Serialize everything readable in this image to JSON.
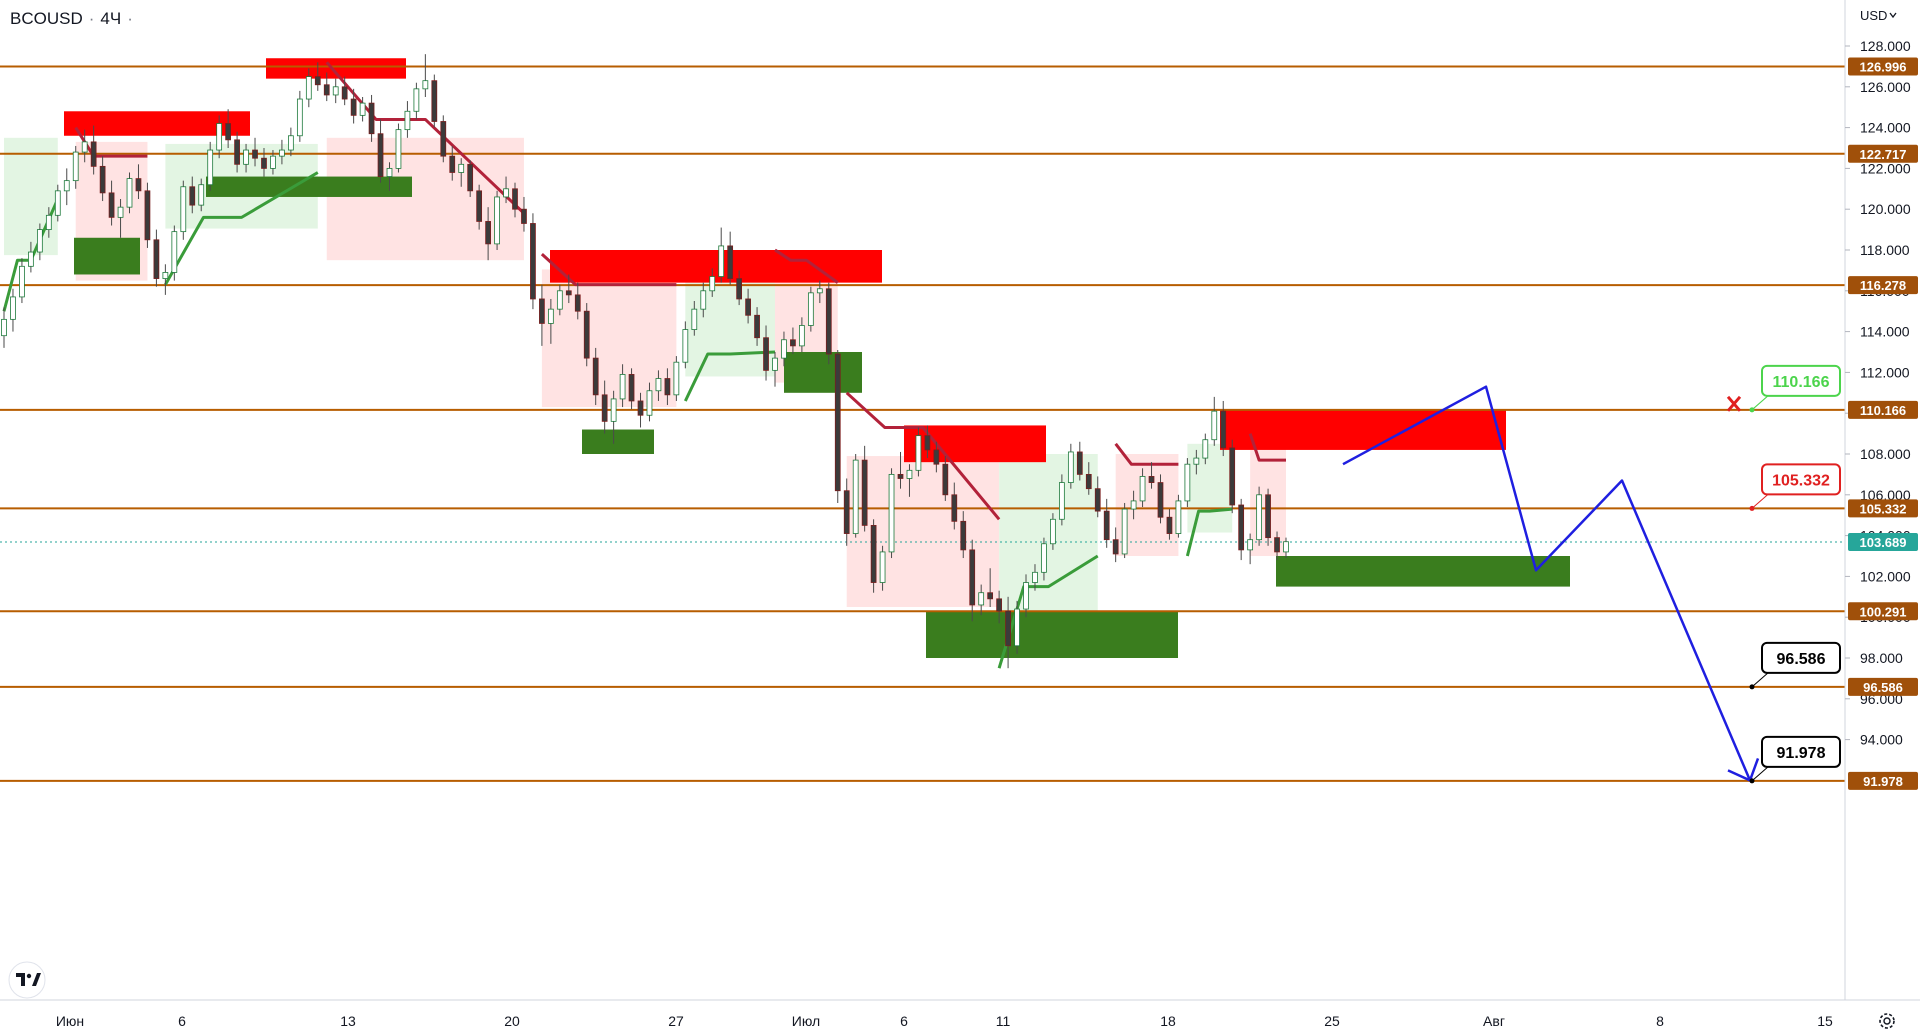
{
  "header": {
    "symbol": "BCOUSD",
    "separator": "·",
    "interval": "4Ч",
    "currency": "USD"
  },
  "colors": {
    "level_line": "#b75d00",
    "level_label_bg": "#a0500a",
    "supply_zone": "#ff0000",
    "demand_zone": "#3a7d1e",
    "bear_band": "#ffe3e3",
    "bull_band": "#e3f5e3",
    "bear_line": "#b2223a",
    "bull_line": "#3a9c3a",
    "projection": "#1f1fe0",
    "last_price": "#26a69a",
    "callout_green": "#4cd44c",
    "callout_red": "#e02020",
    "callout_black": "#000000"
  },
  "chart_data": {
    "type": "candlestick",
    "y_axis": {
      "min": 92,
      "max": 128,
      "ticks": [
        "128.000",
        "126.000",
        "124.000",
        "122.000",
        "120.000",
        "118.000",
        "116.000",
        "114.000",
        "112.000",
        "110.000",
        "108.000",
        "106.000",
        "104.000",
        "102.000",
        "100.000",
        "98.000",
        "96.000",
        "94.000"
      ]
    },
    "x_axis": {
      "ticks": [
        {
          "label": "Июн"
        },
        {
          "label": "6"
        },
        {
          "label": "13"
        },
        {
          "label": "20"
        },
        {
          "label": "27"
        },
        {
          "label": "Июл"
        },
        {
          "label": "6"
        },
        {
          "label": "11"
        },
        {
          "label": "18"
        },
        {
          "label": "25"
        },
        {
          "label": "Авг"
        },
        {
          "label": "8"
        },
        {
          "label": "15"
        }
      ]
    },
    "levels": [
      {
        "value": 126.996,
        "label": "126.996"
      },
      {
        "value": 122.717,
        "label": "122.717"
      },
      {
        "value": 116.278,
        "label": "116.278"
      },
      {
        "value": 110.166,
        "label": "110.166"
      },
      {
        "value": 105.332,
        "label": "105.332"
      },
      {
        "value": 100.291,
        "label": "100.291"
      },
      {
        "value": 96.586,
        "label": "96.586"
      },
      {
        "value": 91.978,
        "label": "91.978"
      }
    ],
    "last_price": {
      "value": 103.689,
      "label": "103.689"
    },
    "callouts": [
      {
        "label": "110.166",
        "value": 110.166,
        "style": "green"
      },
      {
        "label": "105.332",
        "value": 105.332,
        "style": "red"
      },
      {
        "label": "96.586",
        "value": 96.586,
        "style": "black"
      },
      {
        "label": "91.978",
        "value": 91.978,
        "style": "black"
      }
    ],
    "supply_zones": [
      {
        "top": 124.8,
        "bottom": 123.6
      },
      {
        "top": 127.4,
        "bottom": 126.4
      },
      {
        "top": 118.0,
        "bottom": 116.4
      },
      {
        "top": 110.2,
        "bottom": 108.2
      },
      {
        "top": 109.4,
        "bottom": 107.6
      }
    ],
    "demand_zones": [
      {
        "top": 121.6,
        "bottom": 120.6
      },
      {
        "top": 118.6,
        "bottom": 116.8
      },
      {
        "top": 113.0,
        "bottom": 111.0
      },
      {
        "top": 109.2,
        "bottom": 108.0
      },
      {
        "top": 103.0,
        "bottom": 101.5
      },
      {
        "top": 100.3,
        "bottom": 98.0
      }
    ],
    "projection_path": [
      107.5,
      111.3,
      102.3,
      106.7,
      92.0
    ],
    "ohlc": [
      [
        113.8,
        115.2,
        113.2,
        114.6
      ],
      [
        114.6,
        116.1,
        114.0,
        115.7
      ],
      [
        115.7,
        117.6,
        115.4,
        117.2
      ],
      [
        117.2,
        118.4,
        116.9,
        117.9
      ],
      [
        117.9,
        119.3,
        117.5,
        119.0
      ],
      [
        119.0,
        120.1,
        118.6,
        119.7
      ],
      [
        119.7,
        121.2,
        119.4,
        120.9
      ],
      [
        120.9,
        122.0,
        120.2,
        121.4
      ],
      [
        121.4,
        123.1,
        121.0,
        122.8
      ],
      [
        122.8,
        123.9,
        122.3,
        123.3
      ],
      [
        123.3,
        124.1,
        121.7,
        122.1
      ],
      [
        122.1,
        122.6,
        120.4,
        120.8
      ],
      [
        120.8,
        121.4,
        119.2,
        119.6
      ],
      [
        119.6,
        120.5,
        118.6,
        120.1
      ],
      [
        120.1,
        121.8,
        119.8,
        121.5
      ],
      [
        121.5,
        122.2,
        120.5,
        120.9
      ],
      [
        120.9,
        121.3,
        118.1,
        118.5
      ],
      [
        118.5,
        119.0,
        116.2,
        116.6
      ],
      [
        116.6,
        117.3,
        115.8,
        116.9
      ],
      [
        116.9,
        119.2,
        116.5,
        118.9
      ],
      [
        118.9,
        121.4,
        118.5,
        121.1
      ],
      [
        121.1,
        121.6,
        119.8,
        120.2
      ],
      [
        120.2,
        121.5,
        119.9,
        121.2
      ],
      [
        121.2,
        123.3,
        120.9,
        122.9
      ],
      [
        122.9,
        124.6,
        122.5,
        124.2
      ],
      [
        124.2,
        124.9,
        123.0,
        123.4
      ],
      [
        123.4,
        123.8,
        121.8,
        122.2
      ],
      [
        122.2,
        123.2,
        121.8,
        122.9
      ],
      [
        122.9,
        123.5,
        122.1,
        122.5
      ],
      [
        122.5,
        123.0,
        121.6,
        122.0
      ],
      [
        122.0,
        122.9,
        121.7,
        122.6
      ],
      [
        122.6,
        123.4,
        122.2,
        122.9
      ],
      [
        122.9,
        124.0,
        122.6,
        123.6
      ],
      [
        123.6,
        125.8,
        123.3,
        125.4
      ],
      [
        125.4,
        126.9,
        125.0,
        126.5
      ],
      [
        126.5,
        127.2,
        125.8,
        126.1
      ],
      [
        126.1,
        126.7,
        125.3,
        125.6
      ],
      [
        125.6,
        126.4,
        125.2,
        126.0
      ],
      [
        126.0,
        126.5,
        125.1,
        125.4
      ],
      [
        125.4,
        125.9,
        124.2,
        124.6
      ],
      [
        124.6,
        125.5,
        124.3,
        125.2
      ],
      [
        125.2,
        125.6,
        123.3,
        123.7
      ],
      [
        123.7,
        124.4,
        121.3,
        121.6
      ],
      [
        121.6,
        122.3,
        120.9,
        122.0
      ],
      [
        122.0,
        124.2,
        121.8,
        123.9
      ],
      [
        123.9,
        125.3,
        123.5,
        124.8
      ],
      [
        124.8,
        126.2,
        124.4,
        125.9
      ],
      [
        125.9,
        127.6,
        125.5,
        126.3
      ],
      [
        126.3,
        126.6,
        124.0,
        124.3
      ],
      [
        124.3,
        124.6,
        122.3,
        122.6
      ],
      [
        122.6,
        123.1,
        121.4,
        121.8
      ],
      [
        121.8,
        122.5,
        121.1,
        122.2
      ],
      [
        122.2,
        122.4,
        120.6,
        120.9
      ],
      [
        120.9,
        121.2,
        119.0,
        119.4
      ],
      [
        119.4,
        120.1,
        117.5,
        118.3
      ],
      [
        118.3,
        120.9,
        118.0,
        120.6
      ],
      [
        120.6,
        121.6,
        120.3,
        121.0
      ],
      [
        121.0,
        121.3,
        119.6,
        120.0
      ],
      [
        120.0,
        120.6,
        118.9,
        119.3
      ],
      [
        119.3,
        119.8,
        115.1,
        115.6
      ],
      [
        115.6,
        116.3,
        113.3,
        114.4
      ],
      [
        114.4,
        115.6,
        113.4,
        115.1
      ],
      [
        115.1,
        116.3,
        114.8,
        116.0
      ],
      [
        116.0,
        116.8,
        115.4,
        115.8
      ],
      [
        115.8,
        116.4,
        114.6,
        115.0
      ],
      [
        115.0,
        115.4,
        112.3,
        112.7
      ],
      [
        112.7,
        113.2,
        110.4,
        110.9
      ],
      [
        110.9,
        111.6,
        109.0,
        109.6
      ],
      [
        109.6,
        111.1,
        108.5,
        110.7
      ],
      [
        110.7,
        112.4,
        110.3,
        111.9
      ],
      [
        111.9,
        112.2,
        110.2,
        110.6
      ],
      [
        110.6,
        111.0,
        109.3,
        109.9
      ],
      [
        109.9,
        111.5,
        109.6,
        111.1
      ],
      [
        111.1,
        112.1,
        110.6,
        111.7
      ],
      [
        111.7,
        112.2,
        110.4,
        110.9
      ],
      [
        110.9,
        112.8,
        110.6,
        112.5
      ],
      [
        112.5,
        114.5,
        112.2,
        114.1
      ],
      [
        114.1,
        115.5,
        113.8,
        115.1
      ],
      [
        115.1,
        116.4,
        114.7,
        116.0
      ],
      [
        116.0,
        117.1,
        115.7,
        116.7
      ],
      [
        116.7,
        119.1,
        116.4,
        118.2
      ],
      [
        118.2,
        118.9,
        116.3,
        116.6
      ],
      [
        116.6,
        117.0,
        115.3,
        115.6
      ],
      [
        115.6,
        116.1,
        114.4,
        114.8
      ],
      [
        114.8,
        115.2,
        113.3,
        113.7
      ],
      [
        113.7,
        114.3,
        111.6,
        112.1
      ],
      [
        112.1,
        113.0,
        111.3,
        112.7
      ],
      [
        112.7,
        114.0,
        112.3,
        113.6
      ],
      [
        113.6,
        114.2,
        112.9,
        113.3
      ],
      [
        113.3,
        114.7,
        113.0,
        114.3
      ],
      [
        114.3,
        116.2,
        114.0,
        115.9
      ],
      [
        115.9,
        116.5,
        115.4,
        116.1
      ],
      [
        116.1,
        116.4,
        112.4,
        112.9
      ],
      [
        112.9,
        113.1,
        105.6,
        106.2
      ],
      [
        106.2,
        106.8,
        103.5,
        104.1
      ],
      [
        104.1,
        108.0,
        103.9,
        107.7
      ],
      [
        107.7,
        108.4,
        104.2,
        104.5
      ],
      [
        104.5,
        104.8,
        101.2,
        101.7
      ],
      [
        101.7,
        103.5,
        101.3,
        103.2
      ],
      [
        103.2,
        107.3,
        102.9,
        107.0
      ],
      [
        107.0,
        108.1,
        106.3,
        106.8
      ],
      [
        106.8,
        107.5,
        105.9,
        107.2
      ],
      [
        107.2,
        109.3,
        106.9,
        108.9
      ],
      [
        108.9,
        109.4,
        107.8,
        108.2
      ],
      [
        108.2,
        108.6,
        107.1,
        107.5
      ],
      [
        107.5,
        107.9,
        105.7,
        106.0
      ],
      [
        106.0,
        106.6,
        104.3,
        104.7
      ],
      [
        104.7,
        105.2,
        102.9,
        103.3
      ],
      [
        103.3,
        103.8,
        99.8,
        100.6
      ],
      [
        100.6,
        101.6,
        100.1,
        101.2
      ],
      [
        101.2,
        102.4,
        100.5,
        100.9
      ],
      [
        100.9,
        101.3,
        99.7,
        100.3
      ],
      [
        100.3,
        101.0,
        97.5,
        98.6
      ],
      [
        98.6,
        100.8,
        98.2,
        100.4
      ],
      [
        100.4,
        102.1,
        100.0,
        101.7
      ],
      [
        101.7,
        102.6,
        101.3,
        102.2
      ],
      [
        102.2,
        103.9,
        101.8,
        103.6
      ],
      [
        103.6,
        105.1,
        103.3,
        104.8
      ],
      [
        104.8,
        107.0,
        104.5,
        106.6
      ],
      [
        106.6,
        108.5,
        106.3,
        108.1
      ],
      [
        108.1,
        108.6,
        106.7,
        107.0
      ],
      [
        107.0,
        107.6,
        106.0,
        106.3
      ],
      [
        106.3,
        106.9,
        104.9,
        105.2
      ],
      [
        105.2,
        105.8,
        103.4,
        103.8
      ],
      [
        103.8,
        104.4,
        102.7,
        103.1
      ],
      [
        103.1,
        105.6,
        102.9,
        105.3
      ],
      [
        105.3,
        106.2,
        104.8,
        105.7
      ],
      [
        105.7,
        107.3,
        105.4,
        106.9
      ],
      [
        106.9,
        107.6,
        106.3,
        106.6
      ],
      [
        106.6,
        107.0,
        104.6,
        104.9
      ],
      [
        104.9,
        105.3,
        103.8,
        104.1
      ],
      [
        104.1,
        106.0,
        103.9,
        105.7
      ],
      [
        105.7,
        107.8,
        105.4,
        107.5
      ],
      [
        107.5,
        108.2,
        107.0,
        107.8
      ],
      [
        107.8,
        109.0,
        107.5,
        108.7
      ],
      [
        108.7,
        110.8,
        108.4,
        110.1
      ],
      [
        110.1,
        110.6,
        107.9,
        108.3
      ],
      [
        108.3,
        108.7,
        105.1,
        105.5
      ],
      [
        105.5,
        105.8,
        102.8,
        103.3
      ],
      [
        103.3,
        104.1,
        102.6,
        103.8
      ],
      [
        103.8,
        106.4,
        103.5,
        106.0
      ],
      [
        106.0,
        106.3,
        103.5,
        103.9
      ],
      [
        103.9,
        104.2,
        102.8,
        103.2
      ],
      [
        103.2,
        103.9,
        102.9,
        103.7
      ]
    ]
  }
}
